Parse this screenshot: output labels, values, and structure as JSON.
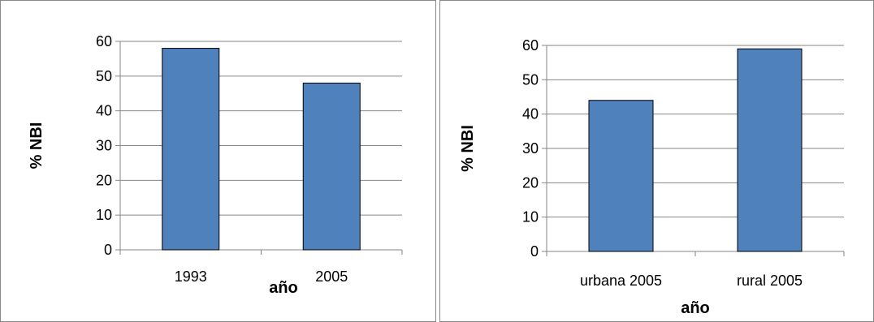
{
  "chart_data": [
    {
      "type": "bar",
      "title": "",
      "categories": [
        "1993",
        "2005"
      ],
      "values": [
        58,
        48
      ],
      "xlabel": "año",
      "ylabel": "% NBI",
      "ylim": [
        0,
        60
      ],
      "yticks": [
        "0",
        "10",
        "20",
        "30",
        "40",
        "50",
        "60"
      ],
      "grid": true,
      "bar_color": "#4f81bd"
    },
    {
      "type": "bar",
      "title": "",
      "categories": [
        "urbana 2005",
        "rural 2005"
      ],
      "values": [
        44,
        59
      ],
      "xlabel": "año",
      "ylabel": "% NBI",
      "ylim": [
        0,
        60
      ],
      "yticks": [
        "0",
        "10",
        "20",
        "30",
        "40",
        "50",
        "60"
      ],
      "grid": true,
      "bar_color": "#4f81bd"
    }
  ]
}
